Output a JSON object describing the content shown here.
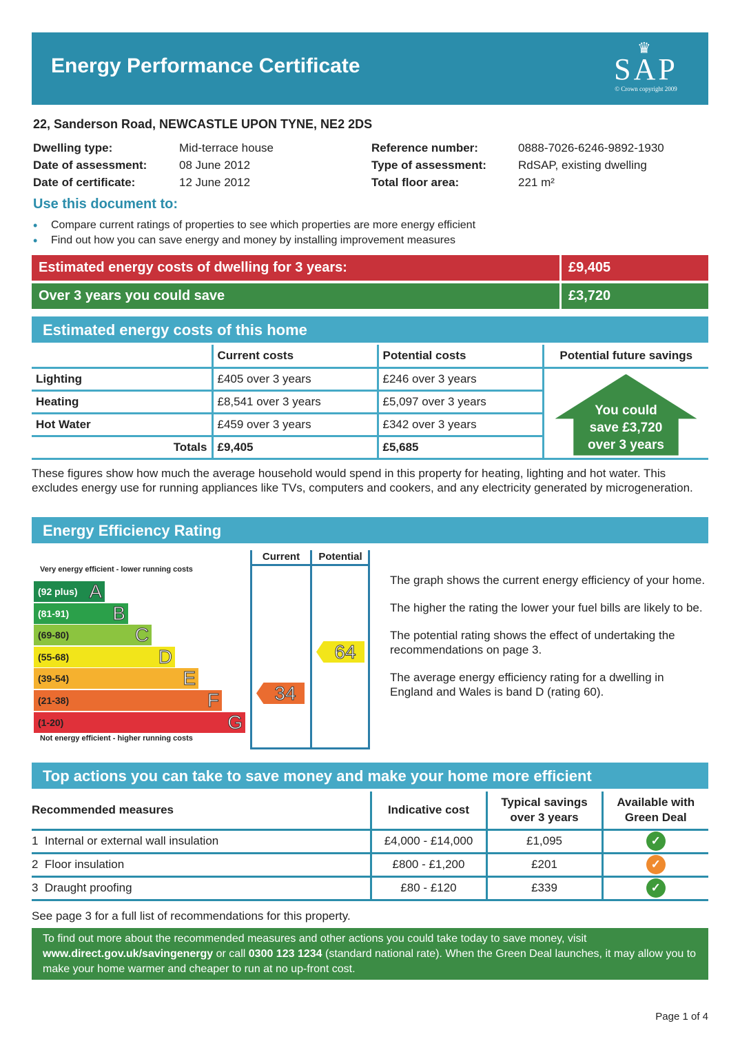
{
  "header": {
    "title": "Energy Performance Certificate",
    "logo": "SAP",
    "copyright": "© Crown copyright 2009"
  },
  "address": "22, Sanderson Road, NEWCASTLE UPON TYNE, NE2 2DS",
  "details_left": [
    {
      "label": "Dwelling type:",
      "value": "Mid-terrace house"
    },
    {
      "label": "Date of assessment:",
      "value": "08 June 2012"
    },
    {
      "label": "Date of certificate:",
      "value": "12 June 2012"
    }
  ],
  "details_right": [
    {
      "label": "Reference number:",
      "value": "0888-7026-6246-9892-1930"
    },
    {
      "label": "Type of assessment:",
      "value": "RdSAP, existing dwelling"
    },
    {
      "label": "Total floor area:",
      "value": "221 m²"
    }
  ],
  "use": {
    "title": "Use this document to:",
    "items": [
      "Compare current ratings of properties to see which properties are more energy efficient",
      "Find out how you can save energy and money by installing improvement measures"
    ]
  },
  "summary": {
    "cost_label": "Estimated energy costs of dwelling for 3 years:",
    "cost_value": "£9,405",
    "save_label": "Over 3 years you could save",
    "save_value": "£3,720",
    "colors": {
      "red": "#c8323a",
      "green": "#3c8c45"
    }
  },
  "costs": {
    "title": "Estimated energy costs of this home",
    "headers": [
      "",
      "Current costs",
      "Potential costs",
      "Potential future savings"
    ],
    "rows": [
      {
        "label": "Lighting",
        "current": "£405 over 3 years",
        "potential": "£246 over 3 years"
      },
      {
        "label": "Heating",
        "current": "£8,541 over 3 years",
        "potential": "£5,097 over 3 years"
      },
      {
        "label": "Hot Water",
        "current": "£459 over 3 years",
        "potential": "£342 over 3 years"
      }
    ],
    "totals": {
      "label": "Totals",
      "current": "£9,405",
      "potential": "£5,685"
    },
    "savings_arrow": [
      "You could",
      "save £3,720",
      "over 3 years"
    ],
    "note": "These figures show how much the average household would spend in this property for heating, lighting and hot water. This excludes energy use for running appliances like TVs, computers and cookers, and any electricity generated by microgeneration."
  },
  "rating": {
    "title": "Energy Efficiency Rating",
    "col_current": "Current",
    "col_potential": "Potential",
    "top_label": "Very energy efficient - lower running costs",
    "bottom_label": "Not energy efficient - higher running costs",
    "bands": [
      {
        "range": "(92 plus)",
        "letter": "A",
        "color": "#1e8a4c"
      },
      {
        "range": "(81-91)",
        "letter": "B",
        "color": "#2ba04a"
      },
      {
        "range": "(69-80)",
        "letter": "C",
        "color": "#8cc43f"
      },
      {
        "range": "(55-68)",
        "letter": "D",
        "color": "#f2e51a"
      },
      {
        "range": "(39-54)",
        "letter": "E",
        "color": "#f5b12f"
      },
      {
        "range": "(21-38)",
        "letter": "F",
        "color": "#ea6c30"
      },
      {
        "range": "(1-20)",
        "letter": "G",
        "color": "#e0313a"
      }
    ],
    "current": "34",
    "current_band": "F",
    "potential": "64",
    "potential_band": "D",
    "desc": [
      "The graph shows the current energy efficiency of your home.",
      "The higher the rating the lower your fuel bills are likely to be.",
      "The potential rating shows the effect of undertaking the recommendations on page 3.",
      "The average energy efficiency rating for a dwelling in England and Wales is band D (rating 60)."
    ]
  },
  "actions": {
    "title": "Top actions you can take to save money and make your home more efficient",
    "headers": [
      "Recommended measures",
      "Indicative cost",
      "Typical savings over 3 years",
      "Available with Green Deal"
    ],
    "rows": [
      {
        "num": "1",
        "measure": "Internal or external wall insulation",
        "cost": "£4,000 - £14,000",
        "saving": "£1,095",
        "green_deal": "green-check-icon",
        "color": "#3f9a3a"
      },
      {
        "num": "2",
        "measure": "Floor insulation",
        "cost": "£800 - £1,200",
        "saving": "£201",
        "green_deal": "orange-check-icon",
        "color": "#ef8a2e"
      },
      {
        "num": "3",
        "measure": "Draught proofing",
        "cost": "£80 - £120",
        "saving": "£339",
        "green_deal": "green-check-icon",
        "color": "#3f9a3a"
      }
    ],
    "see_page": "See page 3 for a full list of recommendations for this property."
  },
  "footer": {
    "t1": "To find out more about the recommended measures and other actions you could take today to save money, visit ",
    "link": "www.direct.gov.uk/savingenergy",
    "t2": " or call ",
    "phone": "0300 123 1234",
    "t3": " (standard national rate). When the Green Deal launches, it may allow you to make your home warmer and cheaper to run at no up-front cost."
  },
  "page": "Page 1 of 4"
}
